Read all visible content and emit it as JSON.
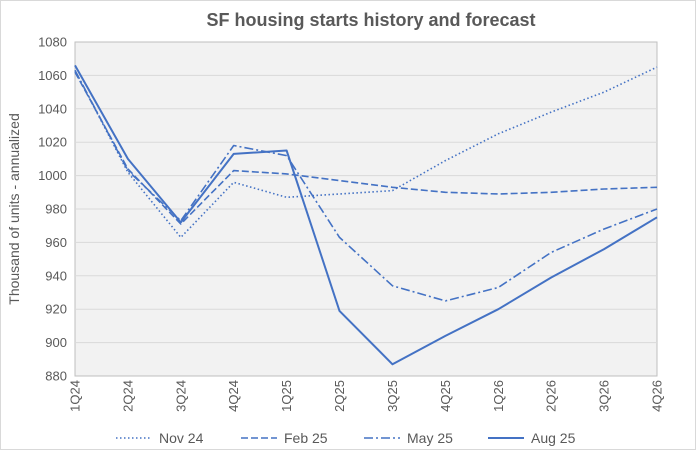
{
  "chart_data": {
    "type": "line",
    "title": "SF housing starts history and forecast",
    "xlabel": "",
    "ylabel": "Thousand  of units - annualized",
    "ylim": [
      880,
      1080
    ],
    "ytick_step": 20,
    "grid": true,
    "legend_position": "bottom",
    "categories": [
      "1Q24",
      "2Q24",
      "3Q24",
      "4Q24",
      "1Q25",
      "2Q25",
      "3Q25",
      "4Q25",
      "1Q26",
      "2Q26",
      "3Q26",
      "4Q26"
    ],
    "series": [
      {
        "name": "Nov 24",
        "dash": "dotted",
        "values": [
          1063,
          1002,
          963,
          996,
          987,
          989,
          991,
          1009,
          1025,
          1038,
          1050,
          1065
        ]
      },
      {
        "name": "Feb 25",
        "dash": "dashed",
        "values": [
          1062,
          1004,
          971,
          1003,
          1001,
          997,
          993,
          990,
          989,
          990,
          992,
          993
        ]
      },
      {
        "name": "May 25",
        "dash": "dashdot",
        "values": [
          1063,
          1003,
          973,
          1018,
          1012,
          963,
          934,
          925,
          933,
          954,
          968,
          980
        ]
      },
      {
        "name": "Aug 25",
        "dash": "solid",
        "values": [
          1066,
          1010,
          972,
          1013,
          1015,
          919,
          887,
          904,
          920,
          939,
          956,
          975
        ]
      }
    ],
    "colors": {
      "line": "#4472c4",
      "plot_bg": "#f2f2f2",
      "grid": "#d9d9d9",
      "text": "#595959"
    }
  }
}
